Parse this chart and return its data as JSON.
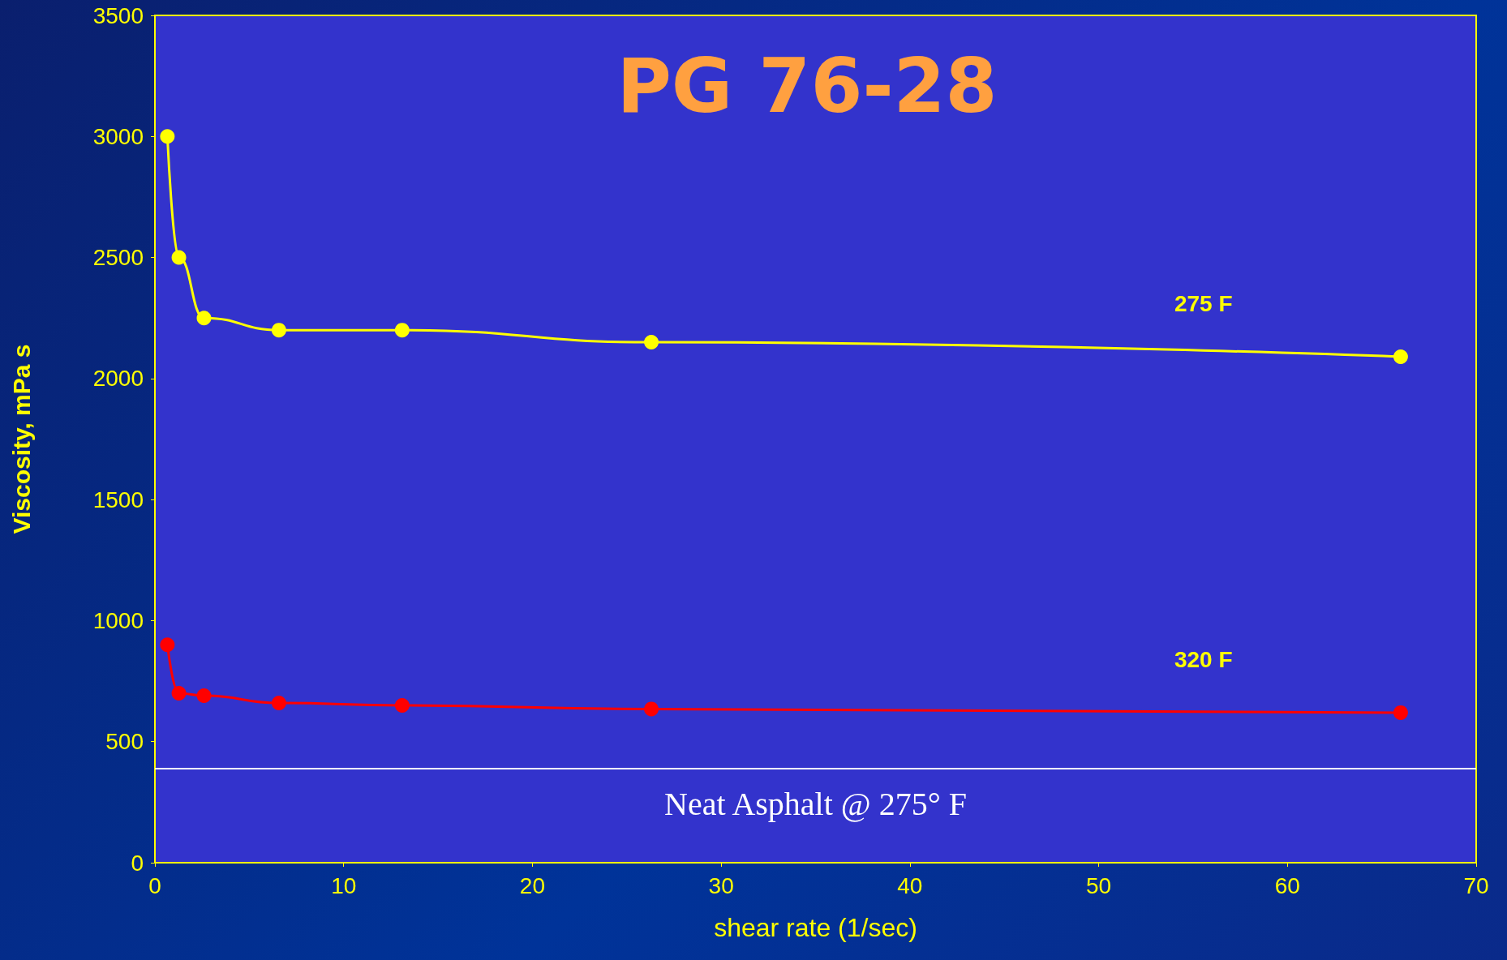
{
  "chart_data": {
    "type": "line",
    "title": "PG 76-28",
    "xlabel": "shear rate (1/sec)",
    "ylabel": "Viscosity, mPa s",
    "series": [
      {
        "name": "275 F",
        "color": "#ffff00",
        "x": [
          0.66,
          1.27,
          2.6,
          6.57,
          13.1,
          26.3,
          66
        ],
        "values": [
          3000,
          2500,
          2250,
          2200,
          2200,
          2150,
          2090
        ]
      },
      {
        "name": "320 F",
        "color": "#ff0000",
        "x": [
          0.66,
          1.27,
          2.6,
          6.57,
          13.1,
          26.3,
          66
        ],
        "values": [
          900,
          700,
          690,
          660,
          650,
          635,
          620
        ]
      }
    ],
    "ref_lines": [
      {
        "axis": "y",
        "value": 390,
        "label": "Neat Asphalt @ 275° F",
        "color": "#ffffff"
      }
    ],
    "xlim": [
      0,
      70
    ],
    "xticks": [
      0,
      10,
      20,
      30,
      40,
      50,
      60,
      70
    ],
    "ylim": [
      0,
      3500
    ],
    "yticks": [
      0,
      500,
      1000,
      1500,
      2000,
      2500,
      3000,
      3500
    ],
    "grid": false,
    "legend": false,
    "marker": "circle",
    "line_style": "solid"
  }
}
